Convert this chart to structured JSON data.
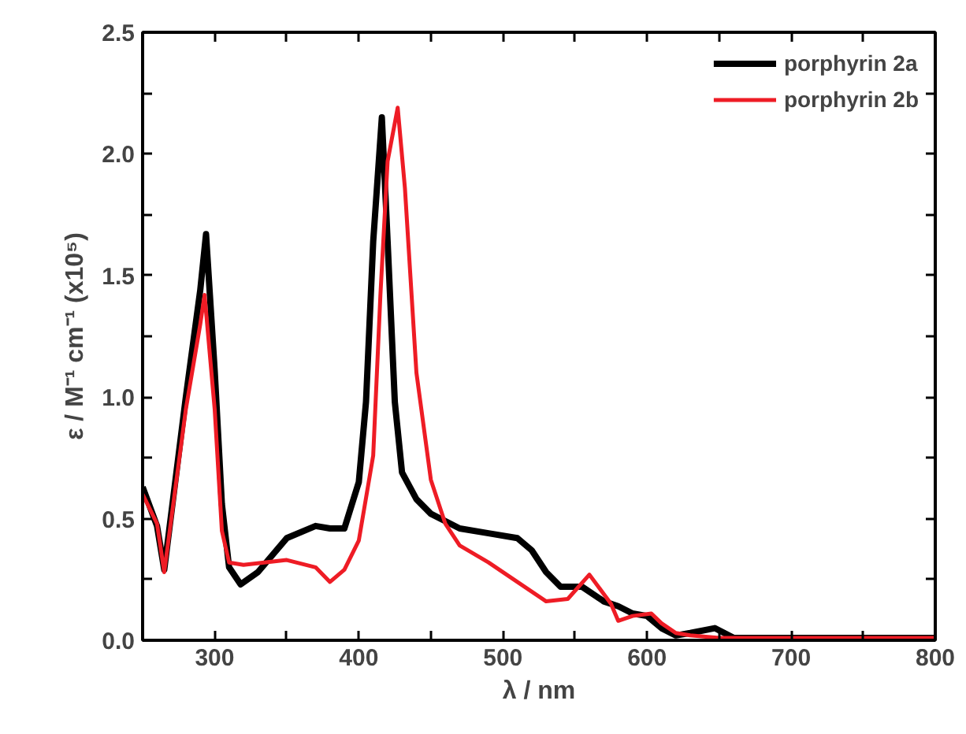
{
  "chart_data": {
    "type": "line",
    "xlabel": "λ / nm",
    "ylabel": "ε / M⁻¹ cm⁻¹ (x10⁵)",
    "xlim": [
      250,
      800
    ],
    "ylim": [
      0,
      2.5
    ],
    "xticks": [
      300,
      {
        "value": 350,
        "label": null
      },
      400,
      {
        "value": 450,
        "label": null
      },
      500,
      {
        "value": 550,
        "label": null
      },
      600,
      {
        "value": 650,
        "label": null
      },
      700,
      {
        "value": 750,
        "label": null
      },
      800
    ],
    "yticks": [
      {
        "value": 0,
        "label": "0.0"
      },
      {
        "value": 0.25,
        "label": null
      },
      0.5,
      {
        "value": 0.75,
        "label": null
      },
      {
        "value": 1,
        "label": "1.0"
      },
      {
        "value": 1.25,
        "label": null
      },
      1.5,
      {
        "value": 1.75,
        "label": null
      },
      {
        "value": 2,
        "label": "2.0"
      },
      {
        "value": 2.25,
        "label": null
      },
      2.5
    ],
    "grid": false,
    "legend": "top right",
    "marker": "none",
    "line_style": "solid",
    "series": [
      {
        "name": "porphyrin 2a",
        "color": "#000000",
        "x": [
          250,
          260,
          265,
          280,
          290,
          294,
          300,
          305,
          310,
          318,
          330,
          350,
          370,
          380,
          390,
          400,
          405,
          410,
          416,
          420,
          425,
          430,
          440,
          450,
          470,
          490,
          510,
          520,
          530,
          540,
          555,
          570,
          580,
          590,
          600,
          610,
          620,
          630,
          647,
          660,
          700,
          800
        ],
        "values": [
          0.63,
          0.47,
          0.29,
          1.0,
          1.44,
          1.67,
          1.11,
          0.56,
          0.3,
          0.23,
          0.28,
          0.42,
          0.47,
          0.46,
          0.46,
          0.65,
          0.98,
          1.64,
          2.15,
          1.64,
          0.98,
          0.69,
          0.58,
          0.52,
          0.46,
          0.44,
          0.42,
          0.37,
          0.28,
          0.22,
          0.22,
          0.16,
          0.14,
          0.11,
          0.1,
          0.05,
          0.02,
          0.03,
          0.05,
          0.01,
          0.01,
          0.01
        ]
      },
      {
        "name": "porphyrin 2b",
        "color": "#ee1c25",
        "x": [
          250,
          260,
          265,
          280,
          290,
          293,
          300,
          305,
          310,
          320,
          350,
          370,
          380,
          390,
          400,
          410,
          415,
          420,
          427,
          432,
          440,
          450,
          460,
          470,
          490,
          510,
          530,
          545,
          560,
          575,
          580,
          590,
          603,
          610,
          620,
          630,
          650,
          700,
          800
        ],
        "values": [
          0.6,
          0.48,
          0.28,
          0.95,
          1.3,
          1.42,
          0.95,
          0.45,
          0.32,
          0.31,
          0.33,
          0.3,
          0.24,
          0.29,
          0.41,
          0.76,
          1.42,
          1.97,
          2.19,
          1.86,
          1.1,
          0.66,
          0.48,
          0.39,
          0.32,
          0.24,
          0.16,
          0.17,
          0.27,
          0.15,
          0.08,
          0.1,
          0.11,
          0.07,
          0.03,
          0.02,
          0.01,
          0.01,
          0.01
        ]
      }
    ]
  }
}
